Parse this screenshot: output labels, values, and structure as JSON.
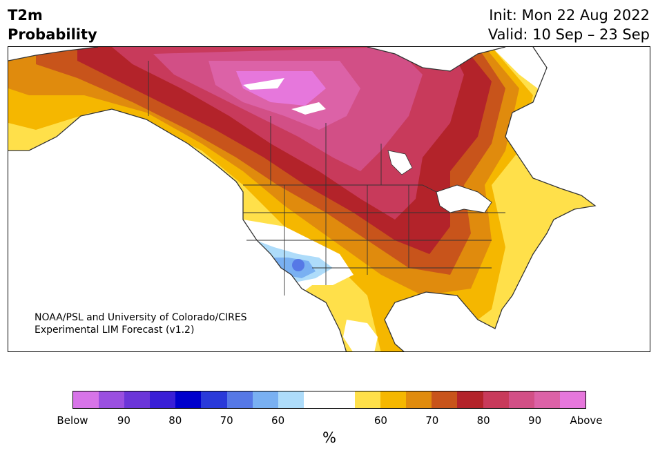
{
  "header": {
    "title_line1": "T2m",
    "title_line2": "Probability",
    "init_text": "Init: Mon 22 Aug 2022",
    "valid_text": "Valid: 10 Sep – 23 Sep"
  },
  "map": {
    "region": "North America",
    "credit_line1": "NOAA/PSL and University of Colorado/CIRES",
    "credit_line2": "Experimental LIM Forecast (v1.2)"
  },
  "colorbar": {
    "unit": "%",
    "ticks": [
      "Below",
      "90",
      "80",
      "70",
      "60",
      "60",
      "70",
      "80",
      "90",
      "Above"
    ],
    "colors": [
      "#d774e8",
      "#9a4fe0",
      "#6b35d8",
      "#3a1fd6",
      "#0000cc",
      "#2a3ad9",
      "#5678e6",
      "#79b0f2",
      "#aedcfa",
      "#ffffff",
      "#ffffff",
      "#ffe04a",
      "#f5b700",
      "#e08b0d",
      "#c8541b",
      "#b3232a",
      "#c83a5b",
      "#d24f86",
      "#dc62a7",
      "#e677dc"
    ]
  }
}
